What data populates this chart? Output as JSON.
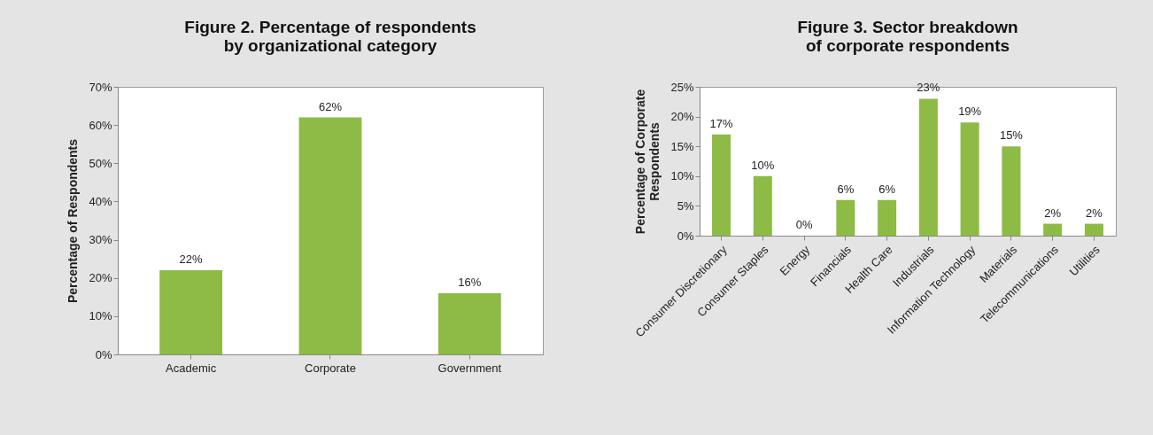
{
  "chart_data": [
    {
      "type": "bar",
      "title": "Figure 2. Percentage of respondents\nby organizational category",
      "ylabel": "Percentage of Respondents",
      "categories": [
        "Academic",
        "Corporate",
        "Government"
      ],
      "values": [
        22,
        62,
        16
      ],
      "value_labels": [
        "22%",
        "62%",
        "16%"
      ],
      "color": "#8dbb45",
      "ylim": [
        0,
        70
      ],
      "yticks": [
        {
          "value": 0,
          "label": "0%"
        },
        {
          "value": 10,
          "label": "10%"
        },
        {
          "value": 20,
          "label": "20%"
        },
        {
          "value": 30,
          "label": "30%"
        },
        {
          "value": 40,
          "label": "40%"
        },
        {
          "value": 50,
          "label": "50%"
        },
        {
          "value": 60,
          "label": "60%"
        },
        {
          "value": 70,
          "label": "70%"
        }
      ]
    },
    {
      "type": "bar",
      "title": "Figure 3. Sector breakdown\nof corporate respondents",
      "ylabel": "Percentage of Corporate\nRespondents",
      "categories": [
        "Consumer Discretionary",
        "Consumer Staples",
        "Energy",
        "Financials",
        "Health Care",
        "Industrials",
        "Information Technology",
        "Materials",
        "Telecommunications",
        "Utilities"
      ],
      "values": [
        17,
        10,
        0,
        6,
        6,
        23,
        19,
        15,
        2,
        2
      ],
      "value_labels": [
        "17%",
        "10%",
        "0%",
        "6%",
        "6%",
        "23%",
        "19%",
        "15%",
        "2%",
        "2%"
      ],
      "color": "#8dbb45",
      "ylim": [
        0,
        25
      ],
      "yticks": [
        {
          "value": 0,
          "label": "0%"
        },
        {
          "value": 5,
          "label": "5%"
        },
        {
          "value": 10,
          "label": "10%"
        },
        {
          "value": 15,
          "label": "15%"
        },
        {
          "value": 20,
          "label": "20%"
        },
        {
          "value": 25,
          "label": "25%"
        }
      ]
    }
  ]
}
